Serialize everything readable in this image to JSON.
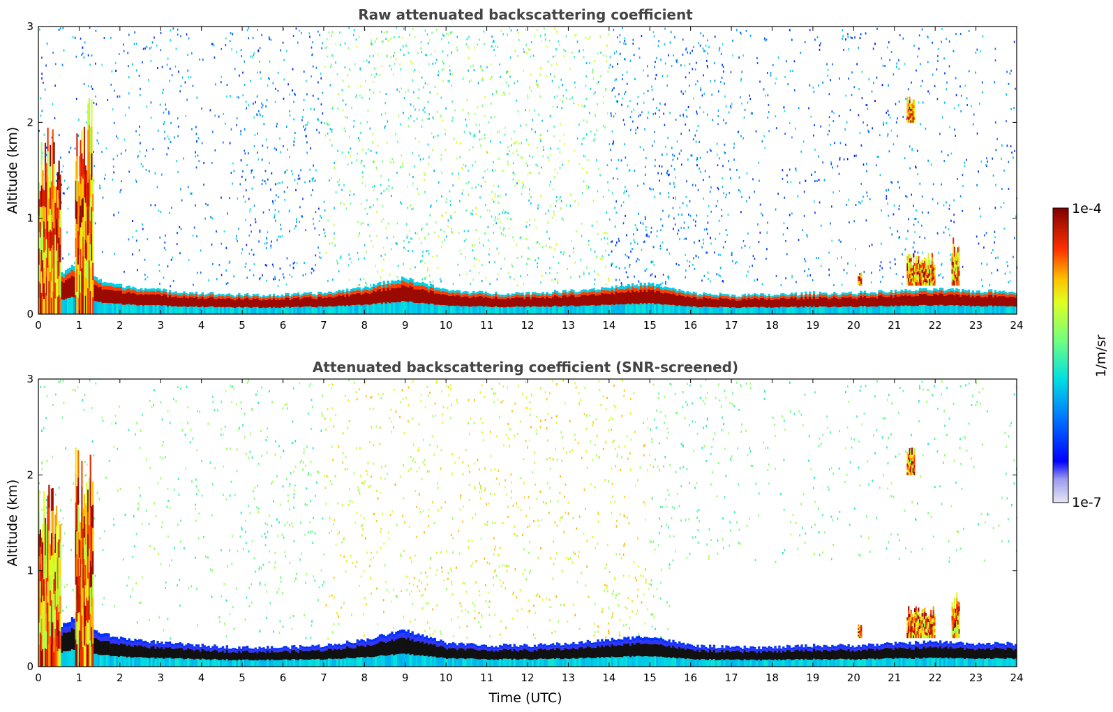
{
  "chart_data": [
    {
      "type": "heatmap",
      "title": "Raw attenuated backscattering coefficient",
      "xlabel": "",
      "ylabel": "Altitude (km)",
      "xlim": [
        0,
        24
      ],
      "ylim": [
        0,
        3
      ],
      "xticks": [
        "0",
        "1",
        "2",
        "3",
        "4",
        "5",
        "6",
        "7",
        "8",
        "9",
        "10",
        "11",
        "12",
        "13",
        "14",
        "15",
        "16",
        "17",
        "18",
        "19",
        "20",
        "21",
        "22",
        "23",
        "24"
      ],
      "yticks": [
        "0",
        "1",
        "2",
        "3"
      ],
      "screened": false,
      "boundary_layer_height_km": [
        [
          0,
          0.5
        ],
        [
          0.5,
          0.4
        ],
        [
          1,
          0.55
        ],
        [
          1.5,
          0.35
        ],
        [
          2,
          0.3
        ],
        [
          3,
          0.25
        ],
        [
          4,
          0.22
        ],
        [
          5,
          0.2
        ],
        [
          6,
          0.2
        ],
        [
          7,
          0.22
        ],
        [
          8,
          0.28
        ],
        [
          9,
          0.38
        ],
        [
          10,
          0.25
        ],
        [
          11,
          0.22
        ],
        [
          12,
          0.22
        ],
        [
          13,
          0.24
        ],
        [
          14,
          0.28
        ],
        [
          15,
          0.32
        ],
        [
          16,
          0.22
        ],
        [
          17,
          0.2
        ],
        [
          18,
          0.2
        ],
        [
          19,
          0.22
        ],
        [
          20,
          0.22
        ],
        [
          21,
          0.24
        ],
        [
          22,
          0.26
        ],
        [
          23,
          0.24
        ],
        [
          24,
          0.24
        ]
      ],
      "features": [
        {
          "name": "low cloud",
          "x": [
            0,
            0.55
          ],
          "y": [
            0,
            2.0
          ],
          "level": "high"
        },
        {
          "name": "low cloud",
          "x": [
            0.9,
            1.35
          ],
          "y": [
            0,
            2.3
          ],
          "level": "high"
        },
        {
          "name": "cloud",
          "x": [
            21.3,
            21.5
          ],
          "y": [
            2.0,
            2.3
          ],
          "level": "high"
        },
        {
          "name": "cloud",
          "x": [
            22.4,
            22.6
          ],
          "y": [
            0.3,
            0.8
          ],
          "level": "high"
        },
        {
          "name": "cloud",
          "x": [
            21.3,
            22.0
          ],
          "y": [
            0.3,
            0.65
          ],
          "level": "high"
        },
        {
          "name": "cloud",
          "x": [
            20.1,
            20.2
          ],
          "y": [
            0.3,
            0.45
          ],
          "level": "high"
        }
      ]
    },
    {
      "type": "heatmap",
      "title": "Attenuated backscattering coefficient (SNR-screened)",
      "xlabel": "Time (UTC)",
      "ylabel": "Altitude (km)",
      "xlim": [
        0,
        24
      ],
      "ylim": [
        0,
        3
      ],
      "xticks": [
        "0",
        "1",
        "2",
        "3",
        "4",
        "5",
        "6",
        "7",
        "8",
        "9",
        "10",
        "11",
        "12",
        "13",
        "14",
        "15",
        "16",
        "17",
        "18",
        "19",
        "20",
        "21",
        "22",
        "23",
        "24"
      ],
      "yticks": [
        "0",
        "1",
        "2",
        "3"
      ],
      "screened": true,
      "boundary_layer_height_km": [
        [
          0,
          0.5
        ],
        [
          0.5,
          0.4
        ],
        [
          1,
          0.55
        ],
        [
          1.5,
          0.35
        ],
        [
          2,
          0.3
        ],
        [
          3,
          0.25
        ],
        [
          4,
          0.22
        ],
        [
          5,
          0.2
        ],
        [
          6,
          0.2
        ],
        [
          7,
          0.22
        ],
        [
          8,
          0.28
        ],
        [
          9,
          0.38
        ],
        [
          10,
          0.25
        ],
        [
          11,
          0.22
        ],
        [
          12,
          0.22
        ],
        [
          13,
          0.24
        ],
        [
          14,
          0.28
        ],
        [
          15,
          0.32
        ],
        [
          16,
          0.22
        ],
        [
          17,
          0.2
        ],
        [
          18,
          0.2
        ],
        [
          19,
          0.22
        ],
        [
          20,
          0.22
        ],
        [
          21,
          0.24
        ],
        [
          22,
          0.26
        ],
        [
          23,
          0.24
        ],
        [
          24,
          0.24
        ]
      ],
      "features": [
        {
          "name": "low cloud",
          "x": [
            0,
            0.55
          ],
          "y": [
            0,
            2.0
          ],
          "level": "high"
        },
        {
          "name": "low cloud",
          "x": [
            0.9,
            1.35
          ],
          "y": [
            0,
            2.3
          ],
          "level": "high"
        },
        {
          "name": "cloud",
          "x": [
            21.3,
            21.5
          ],
          "y": [
            2.0,
            2.3
          ],
          "level": "high"
        },
        {
          "name": "cloud",
          "x": [
            22.4,
            22.6
          ],
          "y": [
            0.3,
            0.8
          ],
          "level": "high"
        },
        {
          "name": "cloud",
          "x": [
            21.3,
            22.0
          ],
          "y": [
            0.3,
            0.65
          ],
          "level": "high"
        },
        {
          "name": "cloud",
          "x": [
            20.1,
            20.2
          ],
          "y": [
            0.3,
            0.45
          ],
          "level": "high"
        }
      ]
    }
  ],
  "colorbar": {
    "max_label": "1e-4",
    "min_label": "1e-7",
    "label": "1/m/sr",
    "colormap": "jet",
    "scale": "log",
    "range": [
      1e-07,
      0.0001
    ]
  }
}
